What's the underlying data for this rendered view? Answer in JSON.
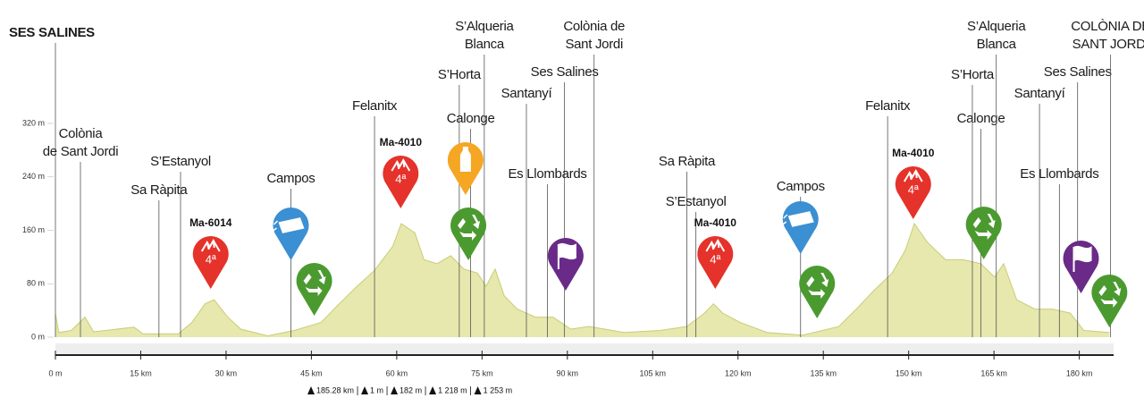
{
  "chart_data": {
    "type": "area",
    "x": [
      0,
      0.6,
      2.8,
      5.2,
      6.7,
      13.8,
      15.4,
      21.6,
      24,
      26.3,
      27.9,
      30.3,
      32.6,
      37.3,
      42,
      46.7,
      49.9,
      53,
      56.1,
      59.3,
      60.8,
      63.2,
      64.8,
      67.1,
      69.5,
      71.8,
      74.2,
      75.7,
      77.3,
      78.9,
      81.2,
      84.4,
      87.5,
      90.6,
      93.8,
      100,
      106.3,
      111,
      114.1,
      115.7,
      117.3,
      120.4,
      125.1,
      131.4,
      137.7,
      140.8,
      143.9,
      147.1,
      149.4,
      151,
      153.3,
      156.5,
      159.6,
      162.7,
      165.1,
      166.7,
      169,
      172.2,
      175.3,
      178.4,
      180.8,
      185.28
    ],
    "values": [
      35,
      7,
      10,
      30,
      8,
      15,
      5,
      5,
      22,
      50,
      56,
      30,
      12,
      2,
      10,
      22,
      50,
      76,
      100,
      136,
      170,
      156,
      116,
      110,
      122,
      102,
      96,
      76,
      102,
      62,
      42,
      30,
      30,
      12,
      16,
      7,
      10,
      16,
      36,
      50,
      36,
      22,
      7,
      3,
      16,
      42,
      70,
      96,
      130,
      170,
      142,
      116,
      116,
      110,
      90,
      110,
      56,
      42,
      42,
      36,
      10,
      7
    ],
    "color": "#e6e8ae",
    "line_color": "#c9cd74",
    "xlim": [
      0,
      186
    ],
    "ylim": [
      0,
      320
    ],
    "xticks": [
      {
        "value": 0,
        "label": "0 m"
      },
      {
        "value": 15,
        "label": "15 km"
      },
      {
        "value": 30,
        "label": "30 km"
      },
      {
        "value": 45,
        "label": "45 km"
      },
      {
        "value": 60,
        "label": "60 km"
      },
      {
        "value": 75,
        "label": "75 km"
      },
      {
        "value": 90,
        "label": "90 km"
      },
      {
        "value": 105,
        "label": "105 km"
      },
      {
        "value": 120,
        "label": "120 km"
      },
      {
        "value": 135,
        "label": "135 km"
      },
      {
        "value": 150,
        "label": "150 km"
      },
      {
        "value": 165,
        "label": "165 km"
      },
      {
        "value": 180,
        "label": "180 km"
      }
    ],
    "yticks": [
      {
        "value": 0,
        "label": "0 m"
      },
      {
        "value": 80,
        "label": "80 m"
      },
      {
        "value": 160,
        "label": "160 m"
      },
      {
        "value": 240,
        "label": "240 m"
      },
      {
        "value": 320,
        "label": "320 m"
      }
    ],
    "places": [
      {
        "name": [
          "SES SALINES"
        ],
        "x": 0
      },
      {
        "name": [
          "Colònia",
          "de Sant Jordi"
        ],
        "x": 4.4
      },
      {
        "name": [
          "Sa Ràpita"
        ],
        "x": 18.2
      },
      {
        "name": [
          "S’Estanyol"
        ],
        "x": 22
      },
      {
        "name": [
          "Campos"
        ],
        "x": 41.4
      },
      {
        "name": [
          "Felanitx"
        ],
        "x": 56.1
      },
      {
        "name": [
          "Calonge"
        ],
        "x": 73
      },
      {
        "name": [
          "S’Horta"
        ],
        "x": 71
      },
      {
        "name": [
          "S’Alqueria",
          "Blanca"
        ],
        "x": 75.4
      },
      {
        "name": [
          "Santanyí"
        ],
        "x": 82.8
      },
      {
        "name": [
          "Ses Salines"
        ],
        "x": 89.5
      },
      {
        "name": [
          "Es Llombards"
        ],
        "x": 86.5
      },
      {
        "name": [
          "Colònia de",
          "Sant Jordi"
        ],
        "x": 94.7
      },
      {
        "name": [
          "Sa Ràpita"
        ],
        "x": 111
      },
      {
        "name": [
          "S’Estanyol"
        ],
        "x": 112.6
      },
      {
        "name": [
          "Campos"
        ],
        "x": 131
      },
      {
        "name": [
          "Felanitx"
        ],
        "x": 146.3
      },
      {
        "name": [
          "Calonge"
        ],
        "x": 162.7
      },
      {
        "name": [
          "S’Horta"
        ],
        "x": 161.2
      },
      {
        "name": [
          "S’Alqueria",
          "Blanca"
        ],
        "x": 165.4
      },
      {
        "name": [
          "Santanyí"
        ],
        "x": 173
      },
      {
        "name": [
          "Es Llombards"
        ],
        "x": 176.5
      },
      {
        "name": [
          "Ses Salines"
        ],
        "x": 179.7
      },
      {
        "name": [
          "COLÒNIA DE",
          "SANT JORDI"
        ],
        "x": 185.5
      }
    ],
    "markers": [
      {
        "kind": "climb",
        "x": 27.3,
        "name": "Ma-6014",
        "category": "4ª"
      },
      {
        "kind": "feed",
        "x": 41.4
      },
      {
        "kind": "recycle",
        "x": 45.5
      },
      {
        "kind": "climb",
        "x": 60.7,
        "name": "Ma-4010",
        "category": "4ª"
      },
      {
        "kind": "water",
        "x": 72.1
      },
      {
        "kind": "recycle",
        "x": 72.6
      },
      {
        "kind": "sprint",
        "x": 89.7
      },
      {
        "kind": "climb",
        "x": 116,
        "name": "Ma-4010",
        "category": "4ª"
      },
      {
        "kind": "feed",
        "x": 131
      },
      {
        "kind": "recycle",
        "x": 133.9
      },
      {
        "kind": "climb",
        "x": 150.8,
        "name": "Ma-4010",
        "category": "4ª"
      },
      {
        "kind": "recycle",
        "x": 163.2
      },
      {
        "kind": "sprint",
        "x": 180.3
      },
      {
        "kind": "recycle",
        "x": 185.3
      }
    ],
    "marker_colors": {
      "climb": "#e5322a",
      "feed": "#3b8fd3",
      "recycle": "#4b9a30",
      "water": "#f5a623",
      "sprint": "#6a2a88"
    },
    "stats": [
      "185.28 km",
      "1 m",
      "182 m",
      "1 218 m",
      "1 253 m"
    ]
  }
}
